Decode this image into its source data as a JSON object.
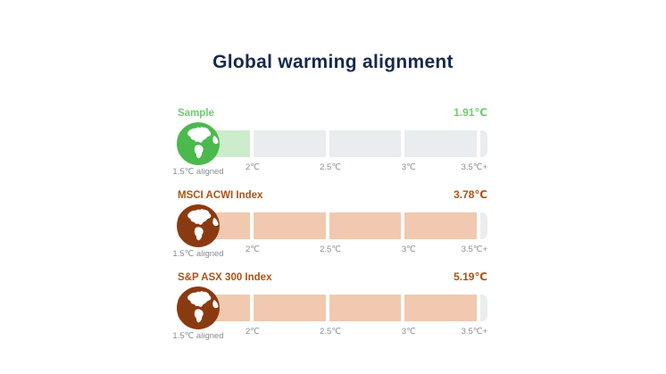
{
  "title": "Global warming alignment",
  "chart_data": {
    "type": "bar",
    "title": "Global warming alignment",
    "unit": "℃",
    "orientation": "horizontal",
    "scale": {
      "min": 1.5,
      "max": 3.5,
      "start_label": "1.5℃ aligned",
      "ticks": [
        "2℃",
        "2.5℃",
        "3℃",
        "3.5℃+"
      ],
      "segment_starts": [
        1.5,
        2,
        2.5,
        3
      ]
    },
    "rows": [
      {
        "label": "Sample",
        "value": 1.91,
        "value_label": "1.91℃",
        "scheme": "green"
      },
      {
        "label": "MSCI ACWI Index",
        "value": 3.78,
        "value_label": "3.78℃",
        "scheme": "rust"
      },
      {
        "label": "S&P ASX 300 Index",
        "value": 5.19,
        "value_label": "5.19℃",
        "scheme": "rust"
      }
    ],
    "colors": {
      "green": {
        "text": "#6fcb6f",
        "globe": "#4bb94e",
        "fill": "#cdeccb"
      },
      "rust": {
        "text": "#b05112",
        "globe": "#8a3a10",
        "fill": "#f0c9b0"
      },
      "track": "#e9edf0",
      "tick_text": "#878e94",
      "title_text": "#16294e"
    }
  }
}
